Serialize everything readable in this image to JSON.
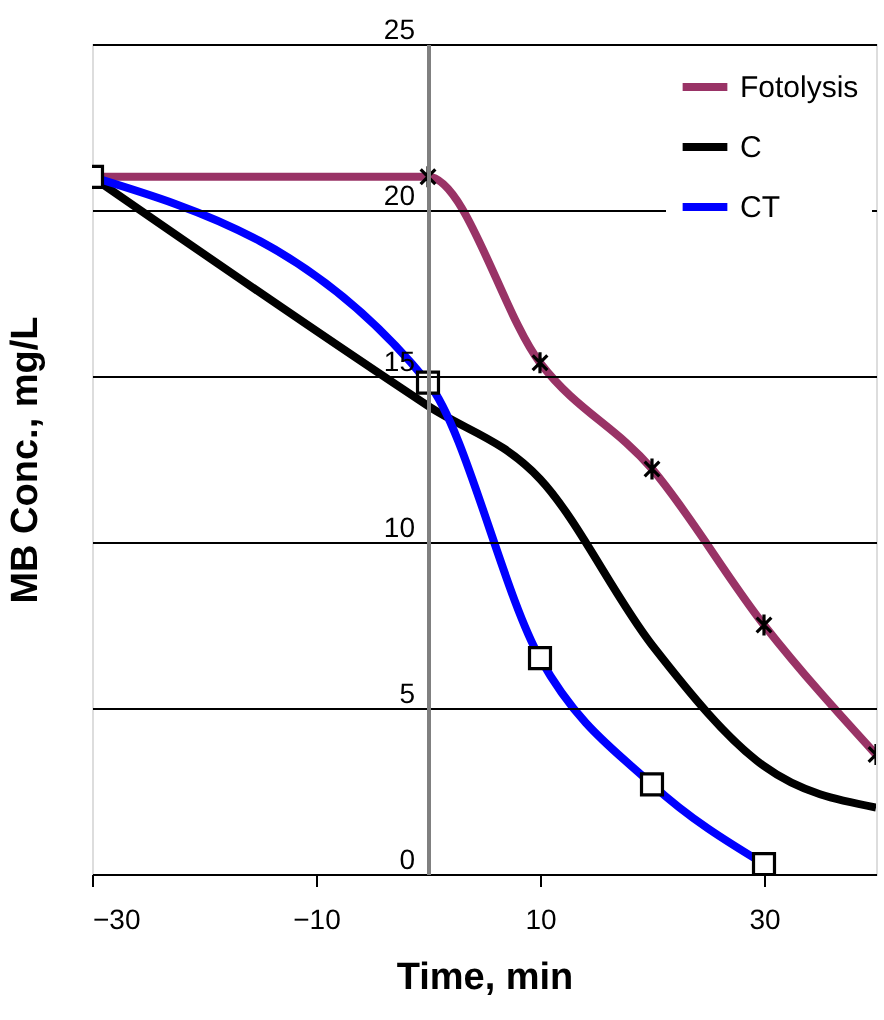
{
  "chart_data": {
    "type": "line",
    "xlabel": "Time, min",
    "ylabel": "MB Conc., mg/L",
    "xlim": [
      -30,
      40
    ],
    "xticks": [
      -30,
      -10,
      10,
      30
    ],
    "ylim": [
      0,
      25
    ],
    "yticks": [
      0,
      5,
      10,
      15,
      20,
      25
    ],
    "grid": "y",
    "legend": "top right",
    "line_style": "solid",
    "series": [
      {
        "name": "Fotolysis",
        "color": "#993366",
        "marker": "cross",
        "x": [
          -30,
          0,
          10,
          20,
          30,
          40
        ],
        "values": [
          21,
          21,
          15.4,
          12.2,
          7.5,
          3.6
        ]
      },
      {
        "name": "C",
        "color": "#000000",
        "marker": "none",
        "x": [
          -30,
          0,
          10,
          20,
          30,
          40
        ],
        "values": [
          21,
          14.1,
          11.9,
          6.9,
          3.25,
          2.0
        ]
      },
      {
        "name": "CT",
        "color": "#0000ff",
        "marker": "square",
        "x": [
          -30,
          0,
          10,
          20,
          30
        ],
        "values": [
          21,
          14.8,
          6.5,
          2.7,
          0.3
        ]
      }
    ]
  }
}
